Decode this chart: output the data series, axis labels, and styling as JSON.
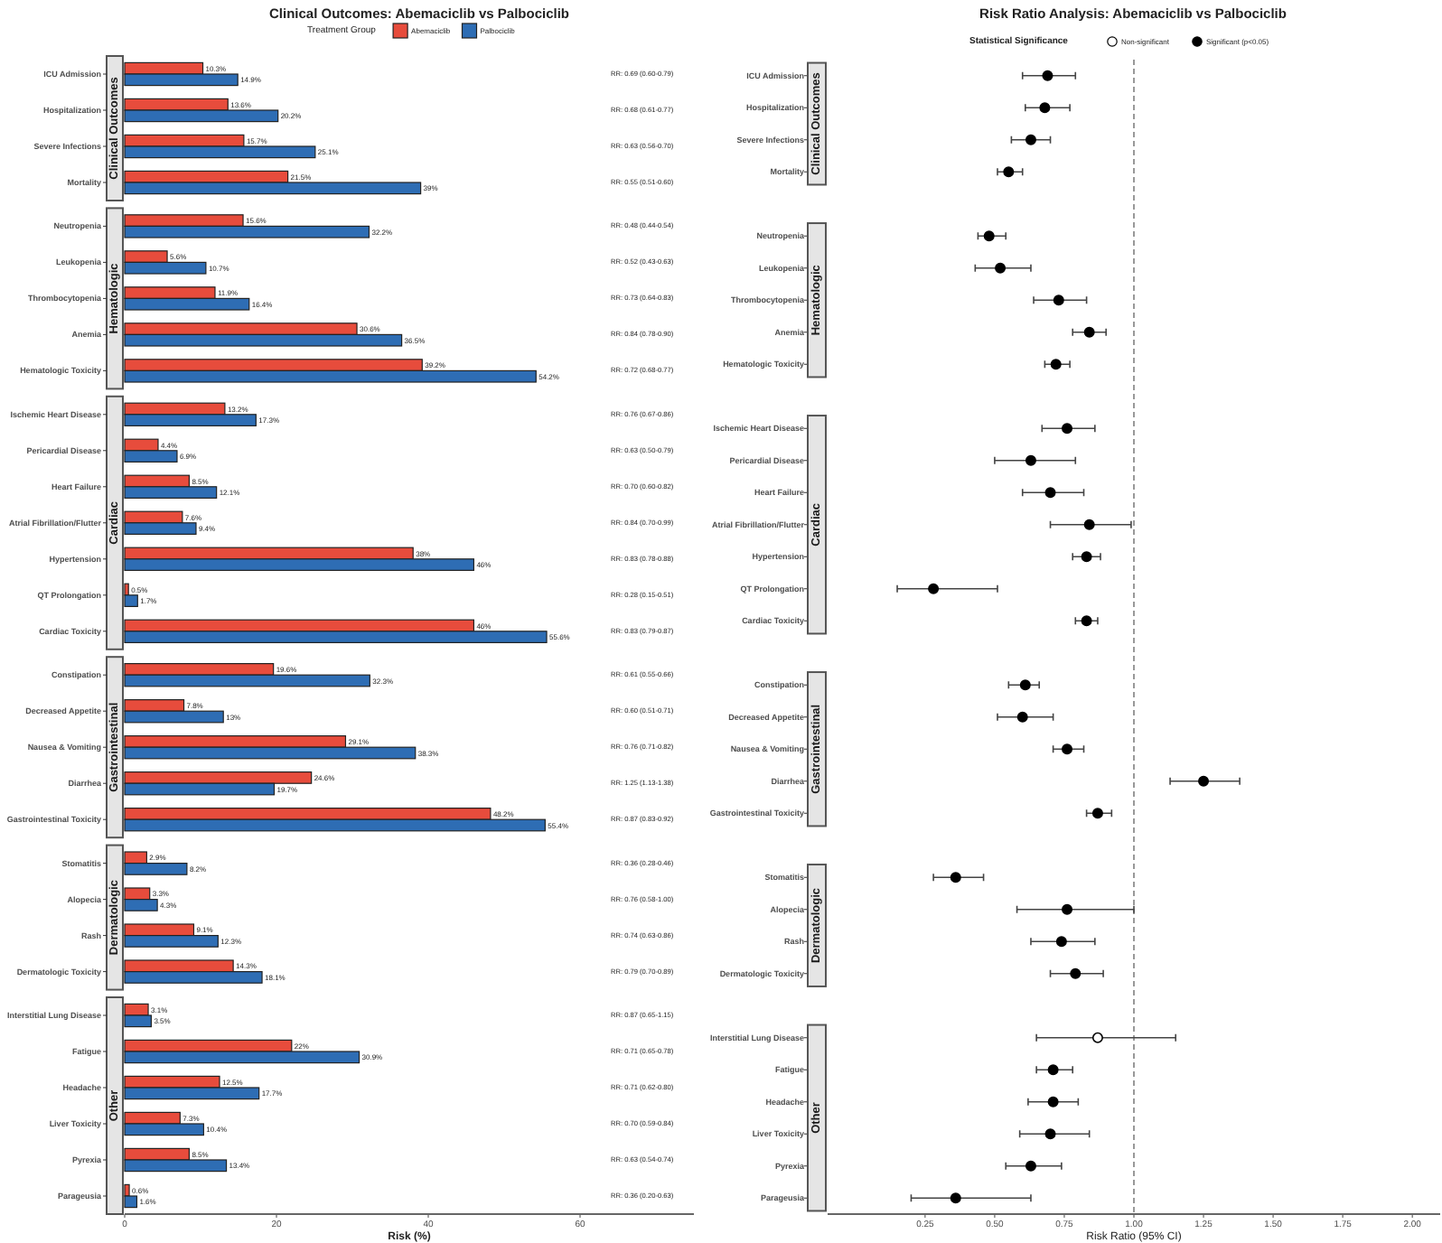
{
  "chart_data": [
    {
      "type": "bar",
      "orientation": "horizontal",
      "title": "Clinical Outcomes: Abemaciclib vs Palbociclib",
      "legend": "top",
      "legend_title": "Treatment Group",
      "ylabel": "Clinical Outcomes",
      "tick_labels": "y",
      "categories": [
        "ICU Admission",
        "Hospitalization",
        "Severe Infections",
        "Mortality"
      ],
      "series": [
        {
          "name": "Abemaciclib",
          "color": "#e74c3c",
          "values": [
            10.3,
            13.6,
            15.7,
            21.5
          ],
          "value_labels": [
            "10.3%",
            "13.6%",
            "15.7%",
            "21.5%"
          ]
        },
        {
          "name": "Palbociclib",
          "color": "#2e6db4",
          "values": [
            14.9,
            20.2,
            25.1,
            39
          ],
          "value_labels": [
            "14.9%",
            "20.2%",
            "25.1%",
            "39%"
          ]
        }
      ],
      "annotations": [
        "RR: 0.69 (0.60-0.79)",
        "RR: 0.68 (0.61-0.77)",
        "RR: 0.63 (0.56-0.70)",
        "RR: 0.55 (0.51-0.60)"
      ]
    },
    {
      "type": "bar",
      "orientation": "horizontal",
      "ylabel": "Hematologic",
      "tick_labels": "y",
      "categories": [
        "Neutropenia",
        "Leukopenia",
        "Thrombocytopenia",
        "Anemia",
        "Hematologic Toxicity"
      ],
      "series": [
        {
          "color": "#e74c3c",
          "values": [
            15.6,
            5.6,
            11.9,
            30.6,
            39.2
          ],
          "value_labels": [
            "15.6%",
            "5.6%",
            "11.9%",
            "30.6%",
            "39.2%"
          ]
        },
        {
          "color": "#2e6db4",
          "values": [
            32.2,
            10.7,
            16.4,
            36.5,
            54.2
          ],
          "value_labels": [
            "32.2%",
            "10.7%",
            "16.4%",
            "36.5%",
            "54.2%"
          ]
        }
      ],
      "annotations": [
        "RR: 0.48 (0.44-0.54)",
        "RR: 0.52 (0.43-0.63)",
        "RR: 0.73 (0.64-0.83)",
        "RR: 0.84 (0.78-0.90)",
        "RR: 0.72 (0.68-0.77)"
      ]
    },
    {
      "type": "bar",
      "orientation": "horizontal",
      "ylabel": "Cardiac",
      "tick_labels": "y",
      "categories": [
        "Ischemic Heart Disease",
        "Pericardial Disease",
        "Heart Failure",
        "Atrial Fibrillation/Flutter",
        "Hypertension",
        "QT Prolongation",
        "Cardiac Toxicity"
      ],
      "series": [
        {
          "color": "#e74c3c",
          "values": [
            13.2,
            4.4,
            8.5,
            7.6,
            38,
            0.5,
            46
          ],
          "value_labels": [
            "13.2%",
            "4.4%",
            "8.5%",
            "7.6%",
            "38%",
            "0.5%",
            "46%"
          ]
        },
        {
          "color": "#2e6db4",
          "values": [
            17.3,
            6.9,
            12.1,
            9.4,
            46,
            1.7,
            55.6
          ],
          "value_labels": [
            "17.3%",
            "6.9%",
            "12.1%",
            "9.4%",
            "46%",
            "1.7%",
            "55.6%"
          ]
        }
      ],
      "annotations": [
        "RR: 0.76 (0.67-0.86)",
        "RR: 0.63 (0.50-0.79)",
        "RR: 0.70 (0.60-0.82)",
        "RR: 0.84 (0.70-0.99)",
        "RR: 0.83 (0.78-0.88)",
        "RR: 0.28 (0.15-0.51)",
        "RR: 0.83 (0.79-0.87)"
      ]
    },
    {
      "type": "bar",
      "orientation": "horizontal",
      "ylabel": "Gastrointestinal",
      "tick_labels": "y",
      "categories": [
        "Constipation",
        "Decreased Appetite",
        "Nausea & Vomiting",
        "Diarrhea",
        "Gastrointestinal Toxicity"
      ],
      "series": [
        {
          "color": "#e74c3c",
          "values": [
            19.6,
            7.8,
            29.1,
            24.6,
            48.2
          ],
          "value_labels": [
            "19.6%",
            "7.8%",
            "29.1%",
            "24.6%",
            "48.2%"
          ]
        },
        {
          "color": "#2e6db4",
          "values": [
            32.3,
            13,
            38.3,
            19.7,
            55.4
          ],
          "value_labels": [
            "32.3%",
            "13%",
            "38.3%",
            "19.7%",
            "55.4%"
          ]
        }
      ],
      "annotations": [
        "RR: 0.61 (0.55-0.66)",
        "RR: 0.60 (0.51-0.71)",
        "RR: 0.76 (0.71-0.82)",
        "RR: 1.25 (1.13-1.38)",
        "RR: 0.87 (0.83-0.92)"
      ]
    },
    {
      "type": "bar",
      "orientation": "horizontal",
      "ylabel": "Dermatologic",
      "tick_labels": "y",
      "categories": [
        "Stomatitis",
        "Alopecia",
        "Rash",
        "Dermatologic Toxicity"
      ],
      "series": [
        {
          "color": "#e74c3c",
          "values": [
            2.9,
            3.3,
            9.1,
            14.3
          ],
          "value_labels": [
            "2.9%",
            "3.3%",
            "9.1%",
            "14.3%"
          ]
        },
        {
          "color": "#2e6db4",
          "values": [
            8.2,
            4.3,
            12.3,
            18.1
          ],
          "value_labels": [
            "8.2%",
            "4.3%",
            "12.3%",
            "18.1%"
          ]
        }
      ],
      "annotations": [
        "RR: 0.36 (0.28-0.46)",
        "RR: 0.76 (0.58-1.00)",
        "RR: 0.74 (0.63-0.86)",
        "RR: 0.79 (0.70-0.89)"
      ]
    },
    {
      "type": "bar",
      "orientation": "horizontal",
      "ylabel": "Other",
      "xlabel": "Risk (%)",
      "xlim": [
        0,
        75
      ],
      "xticks": [
        0,
        20,
        40,
        60
      ],
      "categories": [
        "Interstitial Lung Disease",
        "Fatigue",
        "Headache",
        "Liver Toxicity",
        "Pyrexia",
        "Parageusia"
      ],
      "series": [
        {
          "color": "#e74c3c",
          "values": [
            3.1,
            22,
            12.5,
            7.3,
            8.5,
            0.6
          ],
          "value_labels": [
            "3.1%",
            "22%",
            "12.5%",
            "7.3%",
            "8.5%",
            "0.6%"
          ]
        },
        {
          "color": "#2e6db4",
          "values": [
            3.5,
            30.9,
            17.7,
            10.4,
            13.4,
            1.6
          ],
          "value_labels": [
            "3.5%",
            "30.9%",
            "17.7%",
            "10.4%",
            "13.4%",
            "1.6%"
          ]
        }
      ],
      "annotations": [
        "RR: 0.87 (0.65-1.15)",
        "RR: 0.71 (0.65-0.78)",
        "RR: 0.71 (0.62-0.80)",
        "RR: 0.70 (0.59-0.84)",
        "RR: 0.63 (0.54-0.74)",
        "RR: 0.36 (0.20-0.63)"
      ]
    },
    {
      "type": "scatter",
      "orientation": "horizontal",
      "title": "Risk Ratio Analysis: Abemaciclib vs Palbociclib",
      "legend": "top",
      "legend_title": "Statistical Significance",
      "xlabel": "Risk Ratio (95% CI)",
      "marker": "circle",
      "xlim": [
        -0.1,
        2.1
      ],
      "xticks": [
        {
          "value": 0.25,
          "label": "0.25"
        },
        {
          "value": 0.5,
          "label": "0.50"
        },
        {
          "value": 0.75,
          "label": "0.75"
        },
        {
          "value": 1,
          "label": "1.00"
        },
        {
          "value": 1.25,
          "label": "1.25"
        },
        {
          "value": 1.5,
          "label": "1.50"
        },
        {
          "value": 1.75,
          "label": "1.75"
        },
        {
          "value": 2,
          "label": "2.00"
        }
      ],
      "categories": [
        "ICU Admission",
        "Hospitalization",
        "Severe Infections",
        "Mortality",
        null,
        "Neutropenia",
        "Leukopenia",
        "Thrombocytopenia",
        "Anemia",
        "Hematologic Toxicity",
        null,
        "Ischemic Heart Disease",
        "Pericardial Disease",
        "Heart Failure",
        "Atrial Fibrillation/Flutter",
        "Hypertension",
        "QT Prolongation",
        "Cardiac Toxicity",
        null,
        "Constipation",
        "Decreased Appetite",
        "Nausea & Vomiting",
        "Diarrhea",
        "Gastrointestinal Toxicity",
        null,
        "Stomatitis",
        "Alopecia",
        "Rash",
        "Dermatologic Toxicity",
        null,
        "Interstitial Lung Disease",
        "Fatigue",
        "Headache",
        "Liver Toxicity",
        "Pyrexia",
        "Parageusia"
      ],
      "annotations": [
        "Clinical Outcomes",
        "Hematologic",
        "Cardiac",
        "Gastrointestinal",
        "Dermatologic",
        "Other"
      ],
      "ref_lines": [
        {
          "axis": "x",
          "value": 1,
          "color": "#999999",
          "line_style": "dashed"
        }
      ],
      "series": [
        {
          "name": "Non-significant",
          "color": "#ffffff",
          "values": [
            null,
            null,
            null,
            null,
            null,
            null,
            null,
            null,
            null,
            null,
            null,
            null,
            null,
            null,
            null,
            null,
            null,
            null,
            null,
            null,
            null,
            null,
            null,
            null,
            null,
            null,
            null,
            null,
            null,
            null,
            0.87,
            null,
            null,
            null,
            null,
            null
          ],
          "errors": [
            null,
            null,
            null,
            null,
            null,
            null,
            null,
            null,
            null,
            null,
            null,
            null,
            null,
            null,
            null,
            null,
            null,
            null,
            null,
            null,
            null,
            null,
            null,
            null,
            null,
            null,
            null,
            null,
            null,
            null,
            [
              0.65,
              1.15
            ],
            null,
            null,
            null,
            null,
            null
          ]
        },
        {
          "name": "Significant (p<0.05)",
          "color": "#000000",
          "values": [
            0.69,
            0.68,
            0.63,
            0.55,
            null,
            0.48,
            0.52,
            0.73,
            0.84,
            0.72,
            null,
            0.76,
            0.63,
            0.7,
            0.84,
            0.83,
            0.28,
            0.83,
            null,
            0.61,
            0.6,
            0.76,
            1.25,
            0.87,
            null,
            0.36,
            0.76,
            0.74,
            0.79,
            null,
            null,
            0.71,
            0.71,
            0.7,
            0.63,
            0.36
          ],
          "errors": [
            [
              0.6,
              0.79
            ],
            [
              0.61,
              0.77
            ],
            [
              0.56,
              0.7
            ],
            [
              0.51,
              0.6
            ],
            null,
            [
              0.44,
              0.54
            ],
            [
              0.43,
              0.63
            ],
            [
              0.64,
              0.83
            ],
            [
              0.78,
              0.9
            ],
            [
              0.68,
              0.77
            ],
            null,
            [
              0.67,
              0.86
            ],
            [
              0.5,
              0.79
            ],
            [
              0.6,
              0.82
            ],
            [
              0.7,
              0.99
            ],
            [
              0.78,
              0.88
            ],
            [
              0.15,
              0.51
            ],
            [
              0.79,
              0.87
            ],
            null,
            [
              0.55,
              0.66
            ],
            [
              0.51,
              0.71
            ],
            [
              0.71,
              0.82
            ],
            [
              1.13,
              1.38
            ],
            [
              0.83,
              0.92
            ],
            null,
            [
              0.28,
              0.46
            ],
            [
              0.58,
              1.0
            ],
            [
              0.63,
              0.86
            ],
            [
              0.7,
              0.89
            ],
            null,
            null,
            [
              0.65,
              0.78
            ],
            [
              0.62,
              0.8
            ],
            [
              0.59,
              0.84
            ],
            [
              0.54,
              0.74
            ],
            [
              0.2,
              0.63
            ]
          ]
        }
      ]
    }
  ]
}
